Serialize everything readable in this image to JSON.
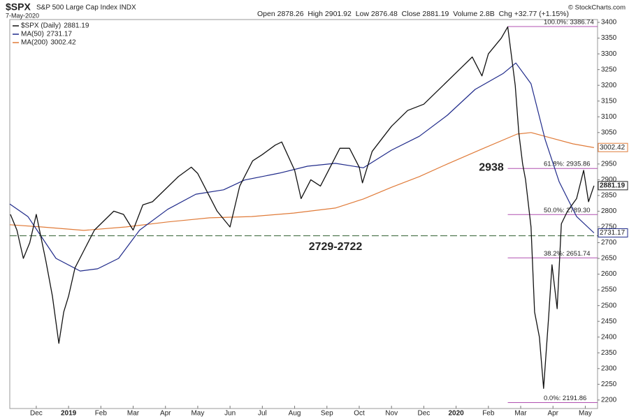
{
  "chart_data": {
    "type": "line",
    "title": "$SPX",
    "subtitle": "S&P 500 Large Cap Index INDX",
    "date": "7-May-2020",
    "quote": "Open 2878.26  High 2901.92  Low 2876.48  Close 2881.19  Volume 2.8B  Chg +32.77 (+1.15%)",
    "credit": "© StockCharts.com",
    "xlim": [
      -0.82,
      17.38
    ],
    "ylim": [
      2173,
      3409
    ],
    "xticks": [
      {
        "value": 0,
        "label": "Dec"
      },
      {
        "value": 1,
        "label": "2019"
      },
      {
        "value": 2,
        "label": "Feb"
      },
      {
        "value": 3,
        "label": "Mar"
      },
      {
        "value": 4,
        "label": "Apr"
      },
      {
        "value": 5,
        "label": "May"
      },
      {
        "value": 6,
        "label": "Jun"
      },
      {
        "value": 7,
        "label": "Jul"
      },
      {
        "value": 8,
        "label": "Aug"
      },
      {
        "value": 9,
        "label": "Sep"
      },
      {
        "value": 10,
        "label": "Oct"
      },
      {
        "value": 11,
        "label": "Nov"
      },
      {
        "value": 12,
        "label": "Dec"
      },
      {
        "value": 13,
        "label": "2020"
      },
      {
        "value": 14,
        "label": "Feb"
      },
      {
        "value": 15,
        "label": "Mar"
      },
      {
        "value": 16,
        "label": "Apr"
      },
      {
        "value": 17,
        "label": "May"
      }
    ],
    "yticks": [
      2200,
      2250,
      2300,
      2350,
      2400,
      2450,
      2500,
      2550,
      2600,
      2650,
      2700,
      2750,
      2800,
      2850,
      2900,
      2950,
      3000,
      3050,
      3100,
      3150,
      3200,
      3250,
      3300,
      3350,
      3400
    ],
    "series": [
      {
        "name": "$SPX (Daily)",
        "last": 2881.19,
        "color": "#111111",
        "width": 1.3,
        "x": [
          -0.8,
          -0.6,
          -0.4,
          -0.2,
          0,
          0.3,
          0.5,
          0.7,
          0.85,
          1,
          1.2,
          1.5,
          1.8,
          2,
          2.4,
          2.7,
          3,
          3.3,
          3.6,
          4,
          4.4,
          4.8,
          5,
          5.3,
          5.6,
          6,
          6.3,
          6.7,
          7,
          7.4,
          7.6,
          8,
          8.2,
          8.5,
          8.8,
          9,
          9.4,
          9.7,
          10,
          10.1,
          10.4,
          10.7,
          11,
          11.5,
          12,
          12.5,
          13,
          13.5,
          13.8,
          14,
          14.4,
          14.6,
          14.83,
          14.94,
          15.06,
          15.15,
          15.32,
          15.43,
          15.58,
          15.71,
          15.87,
          15.97,
          16.13,
          16.26,
          16.45,
          16.73,
          16.95,
          17.1,
          17.27
        ],
        "values": [
          2790,
          2740,
          2650,
          2700,
          2790,
          2640,
          2530,
          2380,
          2480,
          2530,
          2620,
          2680,
          2740,
          2760,
          2800,
          2790,
          2740,
          2820,
          2830,
          2870,
          2910,
          2940,
          2920,
          2860,
          2800,
          2750,
          2880,
          2960,
          2980,
          3010,
          3020,
          2930,
          2840,
          2900,
          2880,
          2920,
          3000,
          3000,
          2940,
          2890,
          2990,
          3030,
          3070,
          3120,
          3140,
          3190,
          3240,
          3290,
          3230,
          3300,
          3350,
          3386,
          3200,
          3050,
          2950,
          2900,
          2750,
          2480,
          2400,
          2237,
          2470,
          2630,
          2490,
          2760,
          2800,
          2840,
          2930,
          2830,
          2881
        ]
      },
      {
        "name": "MA(50)",
        "last": 2731.17,
        "color": "#1f2a8a",
        "width": 1.2,
        "x": [
          -0.82,
          -0.26,
          0.61,
          1.36,
          1.9,
          2.55,
          3.2,
          4.07,
          4.94,
          5.8,
          6.45,
          7.53,
          8.4,
          9.26,
          10.13,
          11.0,
          11.86,
          12.73,
          13.59,
          14.46,
          14.85,
          15.32,
          15.76,
          16.19,
          16.73,
          17.27
        ],
        "values": [
          2823,
          2783,
          2650,
          2610,
          2617,
          2650,
          2740,
          2806,
          2854,
          2868,
          2899,
          2921,
          2943,
          2952,
          2938,
          2994,
          3038,
          3105,
          3187,
          3238,
          3271,
          3205,
          3027,
          2894,
          2783,
          2731
        ]
      },
      {
        "name": "MA(200)",
        "last": 3002.42,
        "color": "#e07b39",
        "width": 1.2,
        "x": [
          -0.82,
          0.17,
          1.47,
          2.77,
          4.07,
          5.37,
          6.67,
          7.97,
          9.26,
          10.13,
          11.0,
          11.86,
          12.73,
          13.81,
          14.89,
          15.32,
          15.97,
          16.62,
          17.27
        ],
        "values": [
          2757,
          2750,
          2739,
          2750,
          2766,
          2779,
          2783,
          2794,
          2810,
          2839,
          2876,
          2910,
          2950,
          2998,
          3045,
          3050,
          3032,
          3014,
          3002
        ]
      }
    ],
    "fib_color": "#b050b0",
    "fib_levels": [
      {
        "label": "100.0%: 3386.74",
        "value": 3386.74
      },
      {
        "label": "61.8%: 2935.86",
        "value": 2935.86
      },
      {
        "label": "50.0%: 2789.30",
        "value": 2789.3
      },
      {
        "label": "38.2%: 2651.74",
        "value": 2651.74
      },
      {
        "label": "0.0%: 2191.86",
        "value": 2191.86
      }
    ],
    "annotations": [
      {
        "text": "2938",
        "value": 2938,
        "color": "#d63fd6"
      },
      {
        "text": "2729-2722",
        "value": 2722,
        "color": "#6a9a3a"
      }
    ]
  }
}
